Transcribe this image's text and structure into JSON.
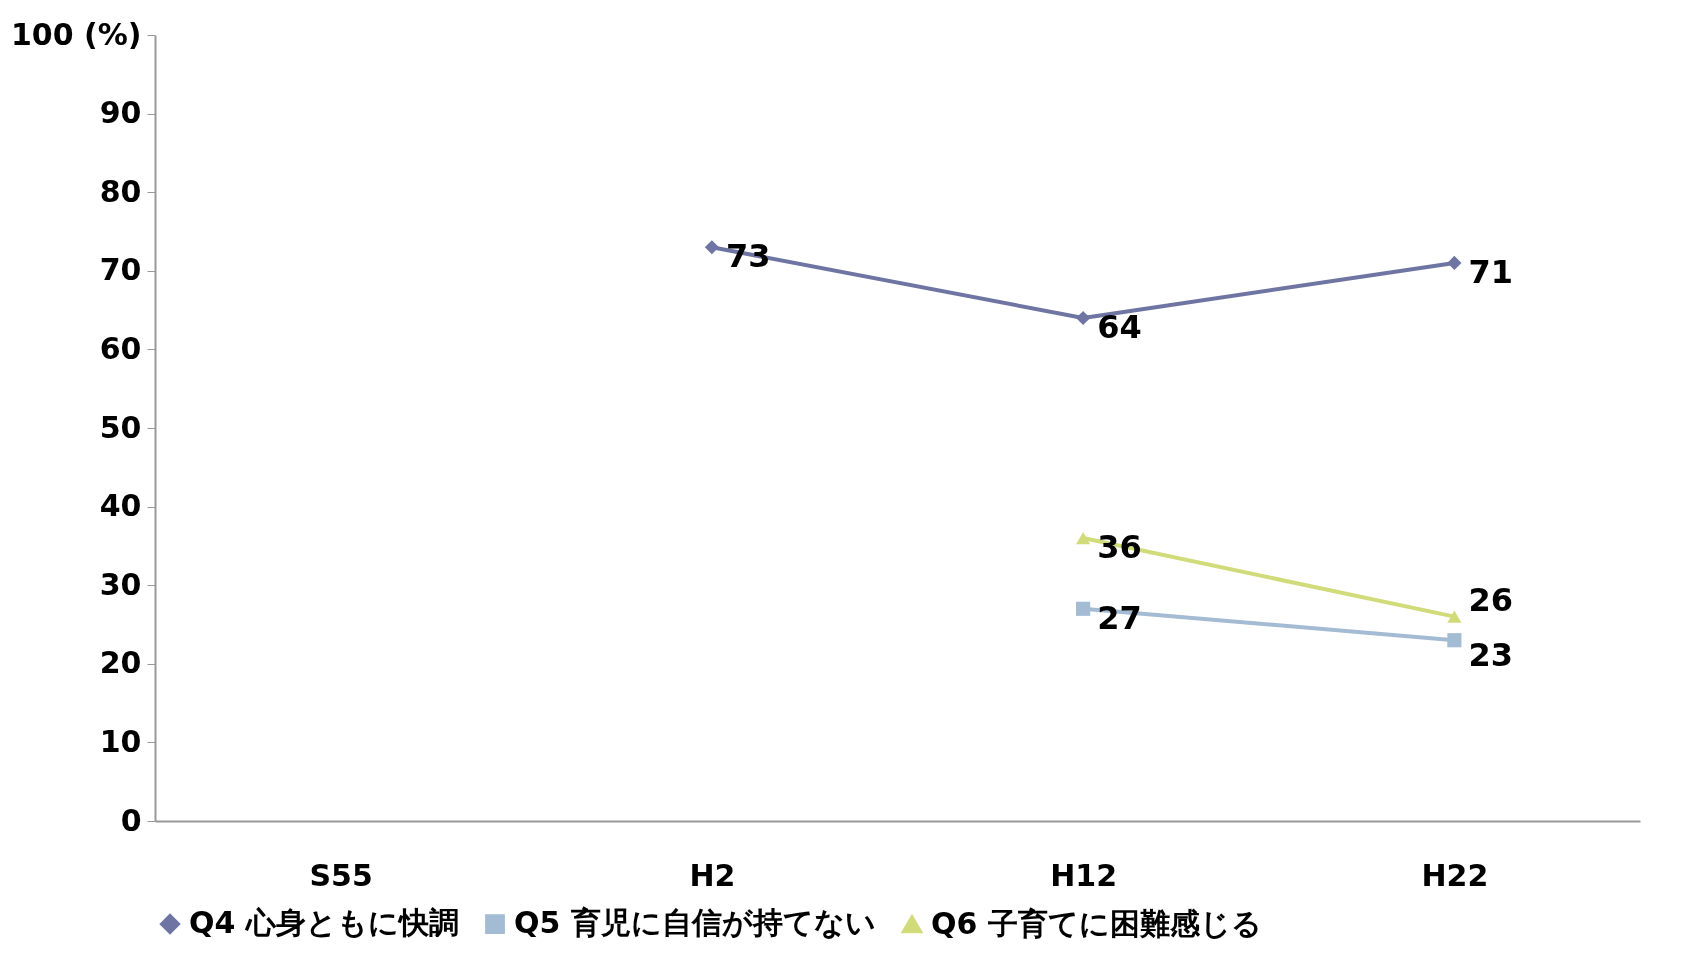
{
  "chart_data": {
    "type": "line",
    "categories": [
      "S55",
      "H2",
      "H12",
      "H22"
    ],
    "series": [
      {
        "name": "Q4 心身ともに快調",
        "color": "#6e75a3",
        "marker": "diamond",
        "values": [
          null,
          73,
          64,
          71
        ]
      },
      {
        "name": "Q5 育児に自信が持てない",
        "color": "#a3bbd3",
        "marker": "square",
        "values": [
          null,
          null,
          27,
          23
        ]
      },
      {
        "name": "Q6 子育てに困難感じる",
        "color": "#d2db7a",
        "marker": "triangle",
        "values": [
          null,
          null,
          36,
          26
        ]
      }
    ],
    "ylim": [
      0,
      100
    ],
    "yticks": [
      0,
      10,
      20,
      30,
      40,
      50,
      60,
      70,
      80,
      90,
      {
        "value": 100,
        "label": "100 (%)"
      }
    ],
    "data_labels": true,
    "grid": false,
    "legend": "bottom"
  }
}
